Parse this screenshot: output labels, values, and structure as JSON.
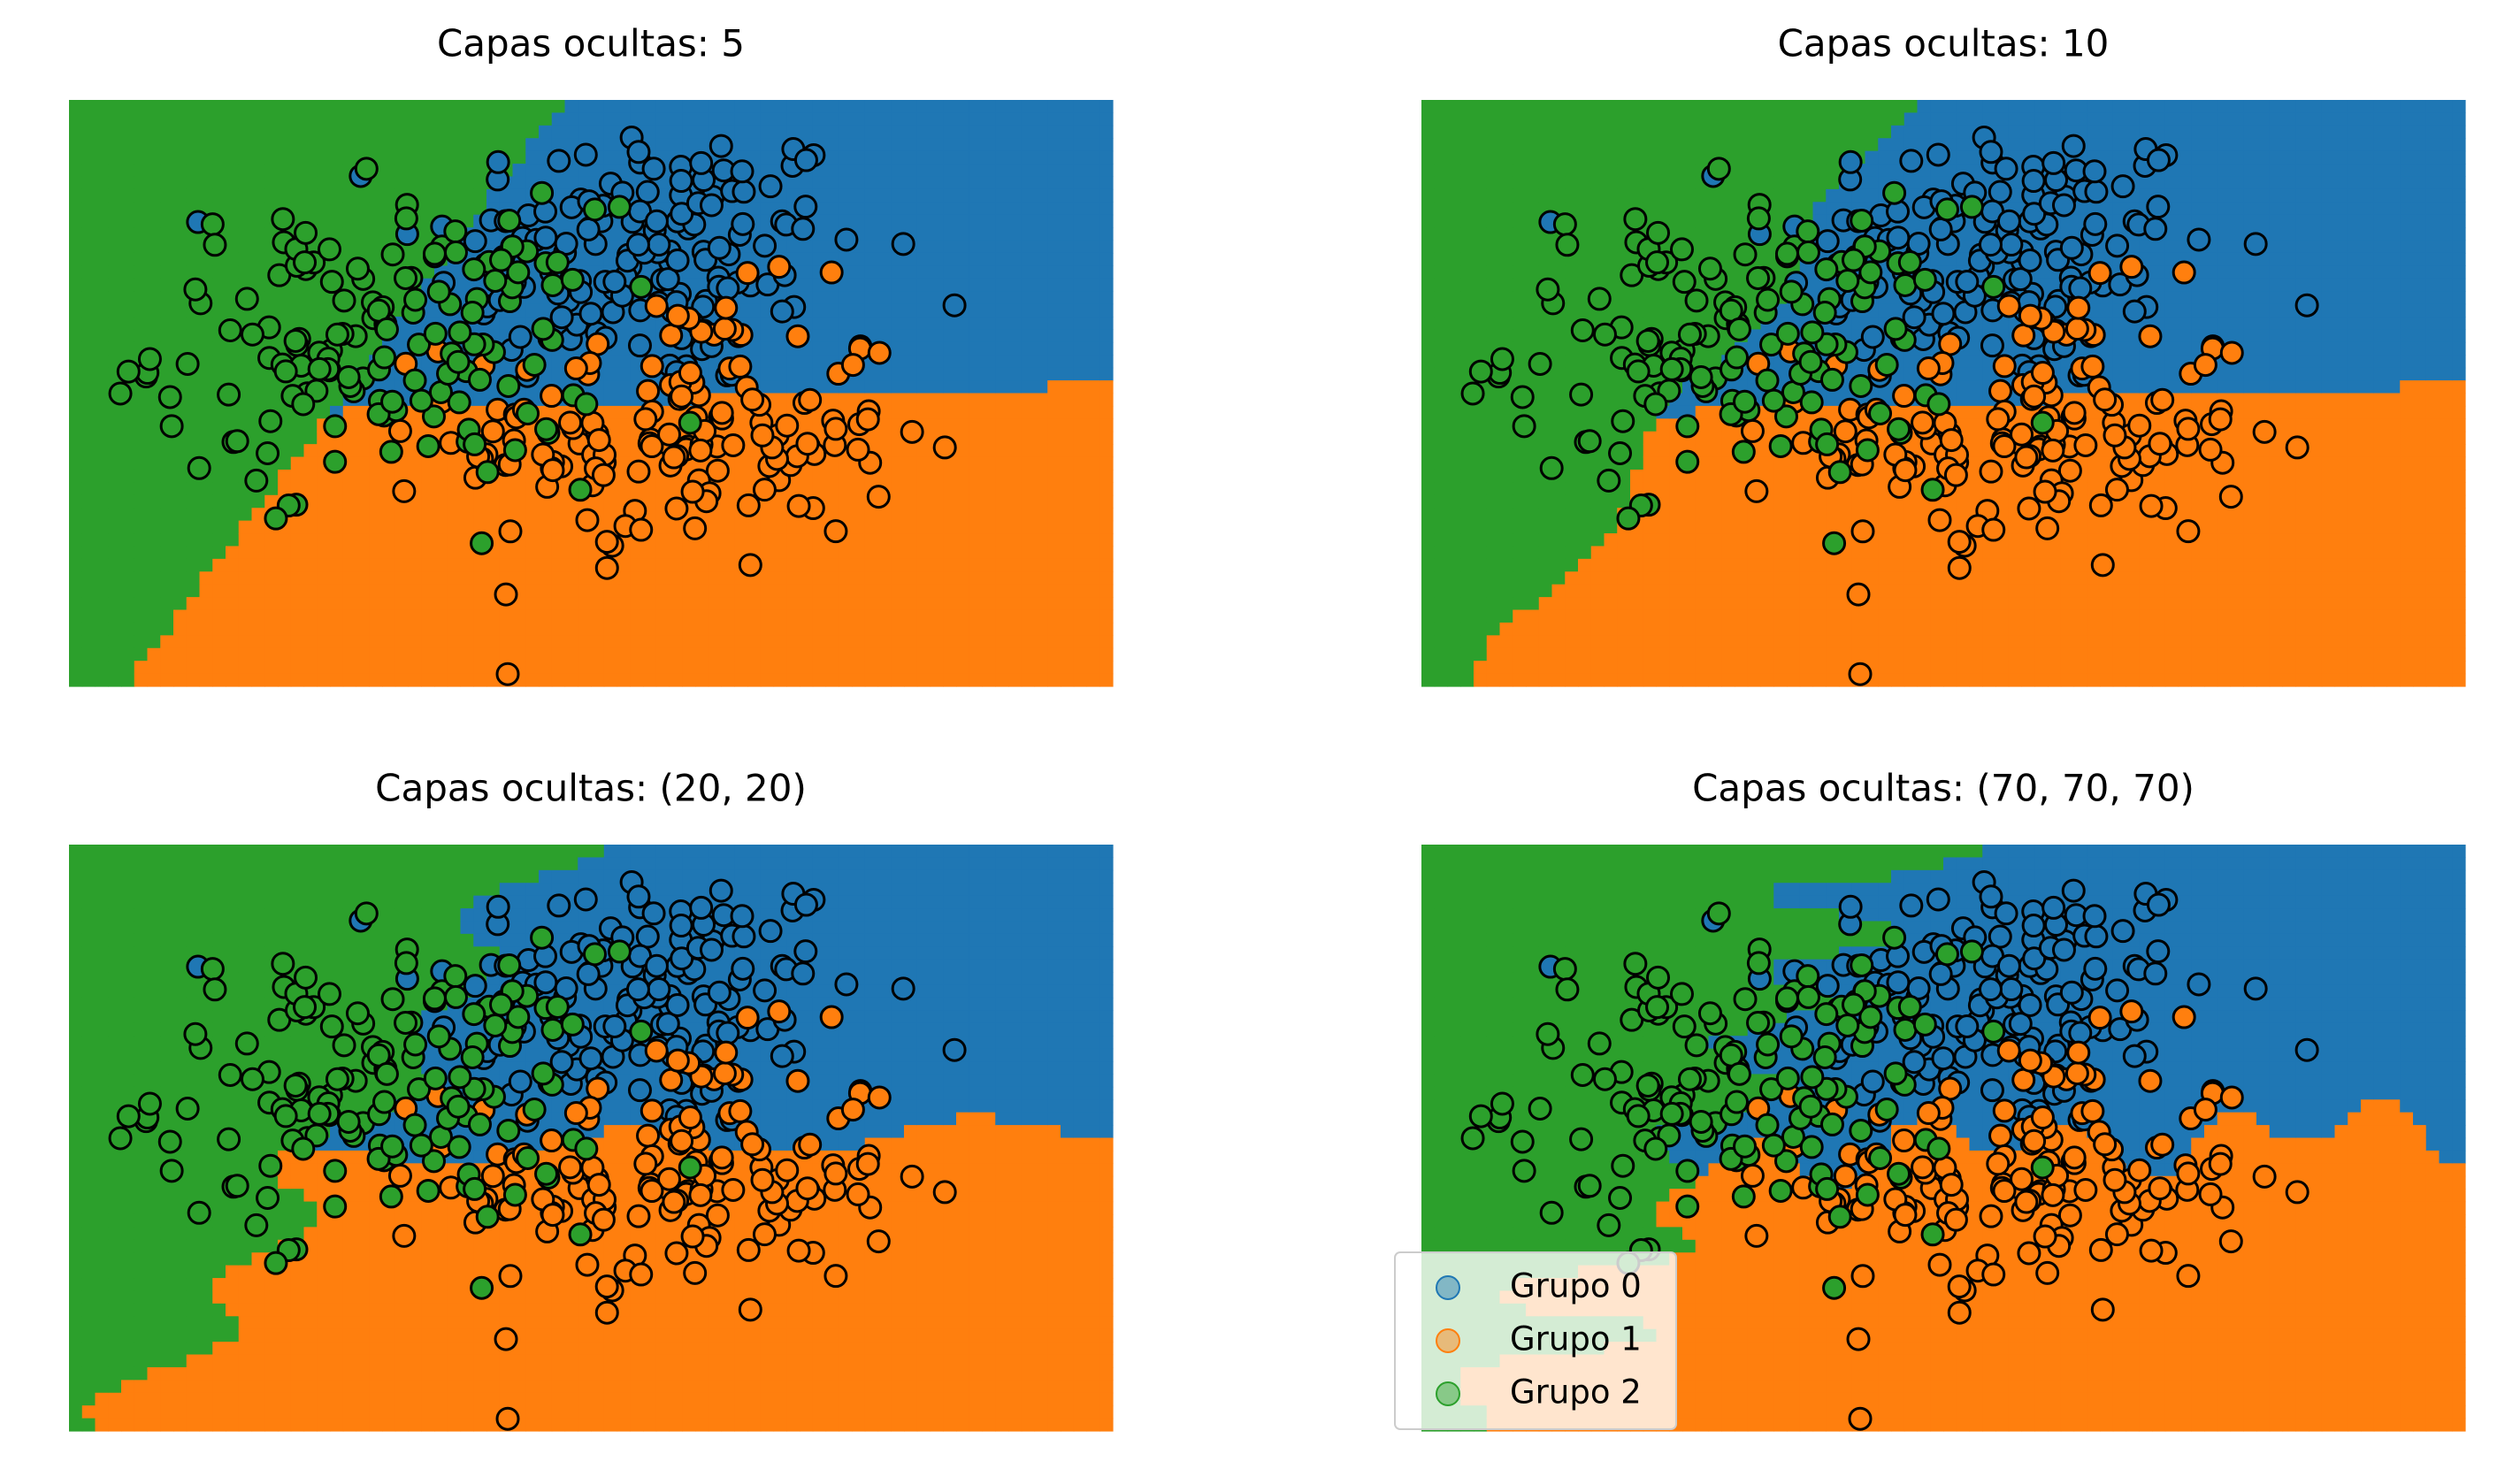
{
  "figure": {
    "colors": {
      "group0": "#1f77b4",
      "group1": "#ff7f0e",
      "group2": "#2ca02c"
    }
  },
  "chart_data": [
    {
      "type": "scatter",
      "title": "Capas ocultas: 5",
      "complexity": 0,
      "xlim": [
        -4.2,
        5.2
      ],
      "ylim": [
        -4.0,
        3.2
      ]
    },
    {
      "type": "scatter",
      "title": "Capas ocultas: 10",
      "complexity": 1,
      "xlim": [
        -4.2,
        5.2
      ],
      "ylim": [
        -4.0,
        3.2
      ]
    },
    {
      "type": "scatter",
      "title": "Capas ocultas: (20, 20)",
      "complexity": 2,
      "xlim": [
        -4.2,
        5.2
      ],
      "ylim": [
        -4.0,
        3.2
      ]
    },
    {
      "type": "scatter",
      "title": "Capas ocultas: (70, 70, 70)",
      "complexity": 3,
      "xlim": [
        -4.2,
        5.2
      ],
      "ylim": [
        -4.0,
        3.2
      ]
    }
  ],
  "legend": {
    "placement": "lower-left of last panel",
    "entries": [
      {
        "label": "Grupo 0",
        "color": "#1f77b4"
      },
      {
        "label": "Grupo 1",
        "color": "#ff7f0e"
      },
      {
        "label": "Grupo 2",
        "color": "#2ca02c"
      }
    ]
  }
}
